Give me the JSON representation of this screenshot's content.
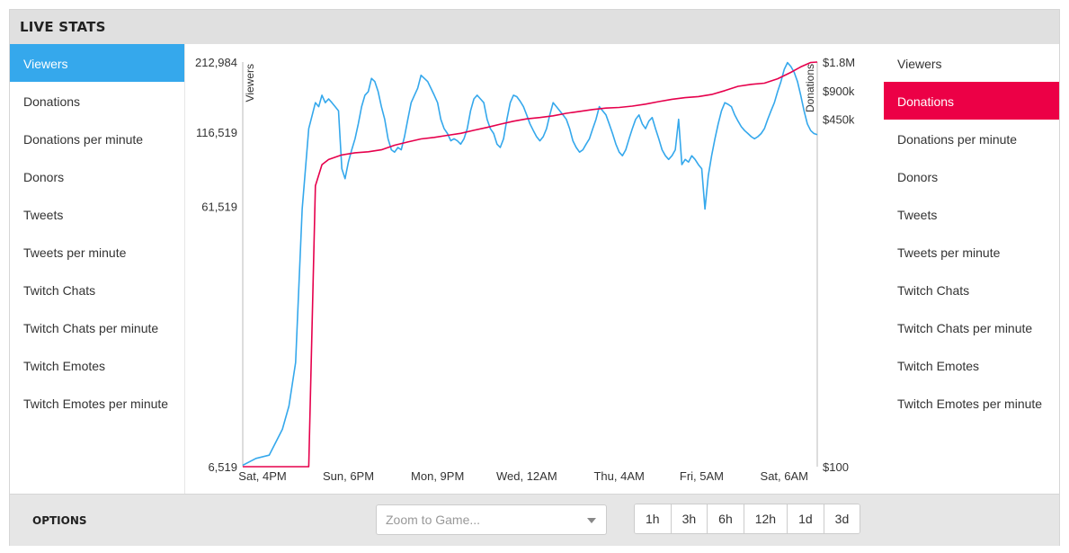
{
  "header": {
    "title": "LIVE STATS"
  },
  "left_metrics": {
    "selected": 0,
    "items": [
      {
        "label": "Viewers"
      },
      {
        "label": "Donations"
      },
      {
        "label": "Donations per minute"
      },
      {
        "label": "Donors"
      },
      {
        "label": "Tweets"
      },
      {
        "label": "Tweets per minute"
      },
      {
        "label": "Twitch Chats"
      },
      {
        "label": "Twitch Chats per minute"
      },
      {
        "label": "Twitch Emotes"
      },
      {
        "label": "Twitch Emotes per minute"
      }
    ]
  },
  "right_metrics": {
    "selected": 1,
    "items": [
      {
        "label": "Viewers"
      },
      {
        "label": "Donations"
      },
      {
        "label": "Donations per minute"
      },
      {
        "label": "Donors"
      },
      {
        "label": "Tweets"
      },
      {
        "label": "Tweets per minute"
      },
      {
        "label": "Twitch Chats"
      },
      {
        "label": "Twitch Chats per minute"
      },
      {
        "label": "Twitch Emotes"
      },
      {
        "label": "Twitch Emotes per minute"
      }
    ]
  },
  "options": {
    "label": "OPTIONS",
    "game_select_placeholder": "Zoom to Game...",
    "ranges": [
      "1h",
      "3h",
      "6h",
      "12h",
      "1d",
      "3d"
    ]
  },
  "colors": {
    "viewers": "#35a8ec",
    "donations": "#e6004c",
    "left_active": "#35a8ec",
    "right_active": "#ec0046"
  },
  "chart_data": {
    "type": "line",
    "x_ticks": [
      "Sat, 4PM",
      "Sun, 6PM",
      "Mon, 9PM",
      "Wed, 12AM",
      "Thu, 4AM",
      "Fri, 5AM",
      "Sat, 6AM"
    ],
    "x_tick_hours": [
      0,
      26,
      53,
      80,
      108,
      133,
      158
    ],
    "x_range_hours": [
      -6,
      168
    ],
    "left_axis": {
      "label": "Viewers",
      "tick_labels": [
        "212,984",
        "116,519",
        "61,519",
        "6,519"
      ],
      "tick_values": [
        212984,
        116519,
        61519,
        6519
      ],
      "scale": "log"
    },
    "right_axis": {
      "label": "Donations",
      "tick_labels": [
        "$1.8M",
        "$900k",
        "$450k",
        "$100"
      ],
      "tick_values": [
        1800000,
        900000,
        450000,
        100
      ],
      "scale": "log"
    },
    "series": [
      {
        "name": "Viewers",
        "axis": "left",
        "points": [
          [
            -6,
            6600
          ],
          [
            -2,
            7000
          ],
          [
            2,
            7200
          ],
          [
            6,
            9000
          ],
          [
            8,
            11000
          ],
          [
            10,
            16000
          ],
          [
            12,
            60000
          ],
          [
            14,
            120000
          ],
          [
            16,
            150000
          ],
          [
            17,
            145000
          ],
          [
            18,
            160000
          ],
          [
            19,
            150000
          ],
          [
            20,
            155000
          ],
          [
            21,
            150000
          ],
          [
            22,
            145000
          ],
          [
            23,
            140000
          ],
          [
            24,
            85000
          ],
          [
            25,
            78000
          ],
          [
            26,
            90000
          ],
          [
            27,
            100000
          ],
          [
            28,
            110000
          ],
          [
            29,
            125000
          ],
          [
            30,
            145000
          ],
          [
            31,
            160000
          ],
          [
            32,
            165000
          ],
          [
            33,
            185000
          ],
          [
            34,
            180000
          ],
          [
            35,
            165000
          ],
          [
            36,
            145000
          ],
          [
            37,
            130000
          ],
          [
            38,
            110000
          ],
          [
            39,
            100000
          ],
          [
            40,
            98000
          ],
          [
            41,
            102000
          ],
          [
            42,
            100000
          ],
          [
            43,
            112000
          ],
          [
            44,
            130000
          ],
          [
            45,
            150000
          ],
          [
            46,
            160000
          ],
          [
            47,
            170000
          ],
          [
            48,
            190000
          ],
          [
            49,
            185000
          ],
          [
            50,
            180000
          ],
          [
            51,
            170000
          ],
          [
            52,
            160000
          ],
          [
            53,
            150000
          ],
          [
            54,
            130000
          ],
          [
            55,
            120000
          ],
          [
            56,
            115000
          ],
          [
            57,
            108000
          ],
          [
            58,
            110000
          ],
          [
            59,
            108000
          ],
          [
            60,
            105000
          ],
          [
            61,
            110000
          ],
          [
            62,
            120000
          ],
          [
            63,
            140000
          ],
          [
            64,
            155000
          ],
          [
            65,
            160000
          ],
          [
            66,
            155000
          ],
          [
            67,
            150000
          ],
          [
            68,
            130000
          ],
          [
            69,
            120000
          ],
          [
            70,
            115000
          ],
          [
            71,
            105000
          ],
          [
            72,
            102000
          ],
          [
            73,
            110000
          ],
          [
            74,
            130000
          ],
          [
            75,
            150000
          ],
          [
            76,
            160000
          ],
          [
            77,
            158000
          ],
          [
            78,
            152000
          ],
          [
            79,
            145000
          ],
          [
            80,
            135000
          ],
          [
            81,
            125000
          ],
          [
            82,
            118000
          ],
          [
            83,
            112000
          ],
          [
            84,
            108000
          ],
          [
            85,
            112000
          ],
          [
            86,
            120000
          ],
          [
            87,
            135000
          ],
          [
            88,
            150000
          ],
          [
            89,
            145000
          ],
          [
            90,
            140000
          ],
          [
            91,
            135000
          ],
          [
            92,
            130000
          ],
          [
            93,
            120000
          ],
          [
            94,
            108000
          ],
          [
            95,
            102000
          ],
          [
            96,
            98000
          ],
          [
            97,
            100000
          ],
          [
            98,
            105000
          ],
          [
            99,
            110000
          ],
          [
            100,
            120000
          ],
          [
            101,
            130000
          ],
          [
            102,
            145000
          ],
          [
            103,
            140000
          ],
          [
            104,
            135000
          ],
          [
            105,
            125000
          ],
          [
            106,
            115000
          ],
          [
            107,
            105000
          ],
          [
            108,
            98000
          ],
          [
            109,
            95000
          ],
          [
            110,
            100000
          ],
          [
            111,
            110000
          ],
          [
            112,
            120000
          ],
          [
            113,
            130000
          ],
          [
            114,
            135000
          ],
          [
            115,
            125000
          ],
          [
            116,
            120000
          ],
          [
            117,
            128000
          ],
          [
            118,
            132000
          ],
          [
            119,
            120000
          ],
          [
            120,
            110000
          ],
          [
            121,
            100000
          ],
          [
            122,
            95000
          ],
          [
            123,
            92000
          ],
          [
            124,
            95000
          ],
          [
            125,
            100000
          ],
          [
            126,
            130000
          ],
          [
            127,
            88000
          ],
          [
            128,
            92000
          ],
          [
            129,
            90000
          ],
          [
            130,
            95000
          ],
          [
            131,
            92000
          ],
          [
            132,
            88000
          ],
          [
            133,
            85000
          ],
          [
            134,
            60000
          ],
          [
            135,
            80000
          ],
          [
            136,
            95000
          ],
          [
            137,
            110000
          ],
          [
            138,
            125000
          ],
          [
            139,
            140000
          ],
          [
            140,
            150000
          ],
          [
            141,
            148000
          ],
          [
            142,
            145000
          ],
          [
            143,
            135000
          ],
          [
            144,
            128000
          ],
          [
            145,
            122000
          ],
          [
            146,
            118000
          ],
          [
            147,
            115000
          ],
          [
            148,
            112000
          ],
          [
            149,
            110000
          ],
          [
            150,
            112000
          ],
          [
            151,
            115000
          ],
          [
            152,
            120000
          ],
          [
            153,
            130000
          ],
          [
            154,
            140000
          ],
          [
            155,
            150000
          ],
          [
            156,
            165000
          ],
          [
            157,
            180000
          ],
          [
            158,
            200000
          ],
          [
            159,
            212000
          ],
          [
            160,
            205000
          ],
          [
            161,
            195000
          ],
          [
            162,
            180000
          ],
          [
            163,
            160000
          ],
          [
            164,
            140000
          ],
          [
            165,
            125000
          ],
          [
            166,
            118000
          ],
          [
            167,
            115000
          ],
          [
            168,
            114000
          ]
        ]
      },
      {
        "name": "Donations",
        "axis": "right",
        "points": [
          [
            -6,
            100
          ],
          [
            14,
            100
          ],
          [
            16,
            90000
          ],
          [
            18,
            150000
          ],
          [
            20,
            170000
          ],
          [
            24,
            190000
          ],
          [
            28,
            200000
          ],
          [
            32,
            205000
          ],
          [
            36,
            215000
          ],
          [
            40,
            240000
          ],
          [
            44,
            260000
          ],
          [
            48,
            280000
          ],
          [
            52,
            290000
          ],
          [
            56,
            305000
          ],
          [
            60,
            320000
          ],
          [
            64,
            345000
          ],
          [
            68,
            370000
          ],
          [
            72,
            400000
          ],
          [
            76,
            430000
          ],
          [
            80,
            455000
          ],
          [
            84,
            470000
          ],
          [
            88,
            490000
          ],
          [
            92,
            520000
          ],
          [
            96,
            545000
          ],
          [
            100,
            570000
          ],
          [
            104,
            590000
          ],
          [
            108,
            600000
          ],
          [
            112,
            620000
          ],
          [
            116,
            650000
          ],
          [
            120,
            690000
          ],
          [
            124,
            730000
          ],
          [
            128,
            760000
          ],
          [
            132,
            780000
          ],
          [
            136,
            820000
          ],
          [
            140,
            900000
          ],
          [
            144,
            1000000
          ],
          [
            148,
            1050000
          ],
          [
            152,
            1080000
          ],
          [
            156,
            1200000
          ],
          [
            160,
            1400000
          ],
          [
            163,
            1600000
          ],
          [
            166,
            1780000
          ],
          [
            168,
            1800000
          ]
        ]
      }
    ]
  }
}
